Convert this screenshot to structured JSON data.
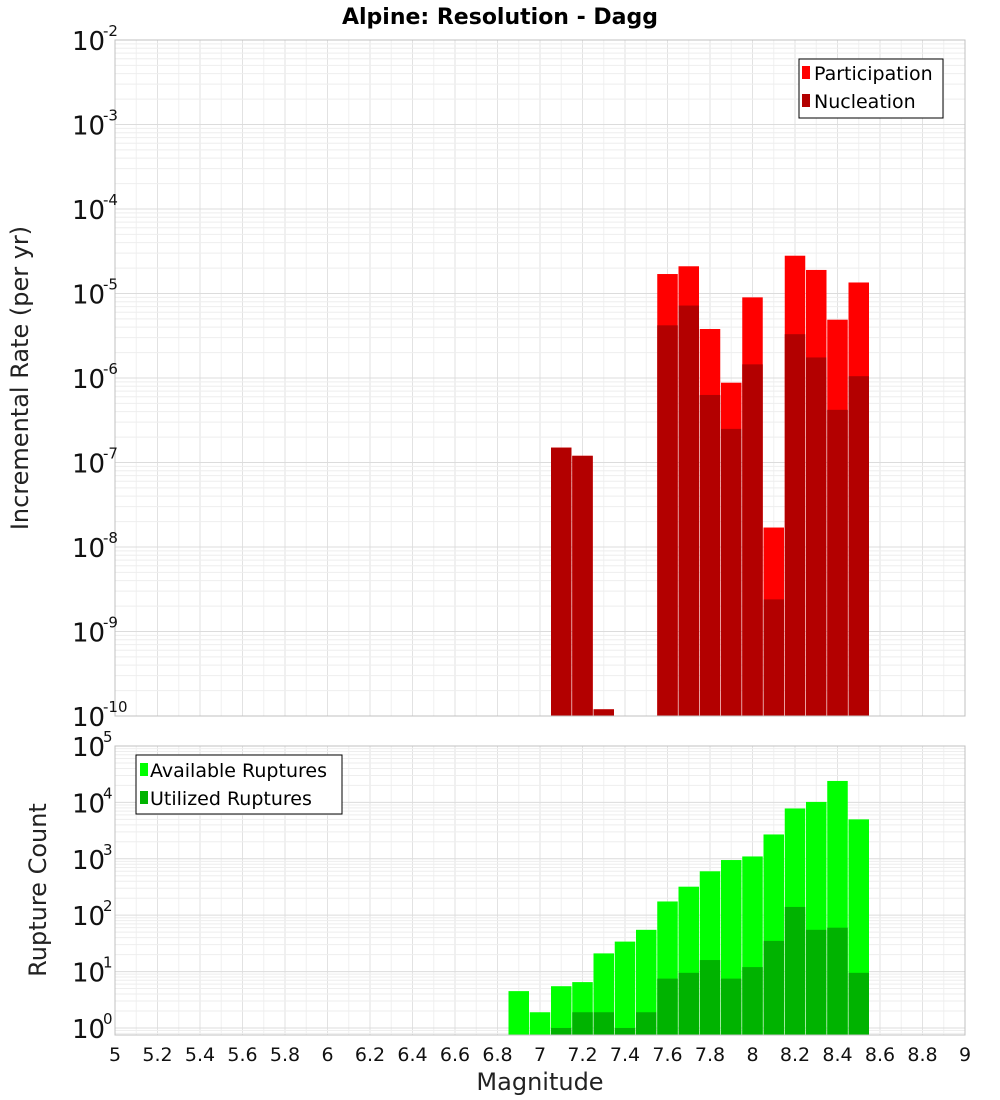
{
  "chart_data": [
    {
      "type": "bar",
      "title": "Alpine: Resolution - Dagg",
      "xlabel": "",
      "ylabel": "Incremental Rate (per yr)",
      "yscale": "log",
      "ylim": [
        1e-10,
        0.01
      ],
      "xlim": [
        5,
        9
      ],
      "ytick_bases": [
        "10",
        "10",
        "10",
        "10",
        "10",
        "10",
        "10",
        "10",
        "10"
      ],
      "ytick_exps": [
        "-10",
        "-9",
        "-8",
        "-7",
        "-6",
        "-5",
        "-4",
        "-3",
        "-2"
      ],
      "legend": "top-right",
      "grid": true,
      "x": [
        7.1,
        7.2,
        7.3,
        7.6,
        7.7,
        7.8,
        7.9,
        8.0,
        8.1,
        8.2,
        8.3,
        8.4,
        8.5
      ],
      "series": [
        {
          "name": "Participation",
          "color": "#ff0000",
          "values": [
            1.5e-07,
            1.2e-07,
            1.2e-10,
            1.7e-05,
            2.1e-05,
            3.8e-06,
            8.8e-07,
            9e-06,
            1.7e-08,
            2.8e-05,
            1.9e-05,
            4.9e-06,
            1.35e-05
          ]
        },
        {
          "name": "Nucleation",
          "color": "#b30000",
          "values": [
            1.5e-07,
            1.2e-07,
            1.2e-10,
            4.2e-06,
            7.2e-06,
            6.3e-07,
            2.5e-07,
            1.45e-06,
            2.4e-09,
            3.3e-06,
            1.75e-06,
            4.2e-07,
            1.05e-06
          ]
        }
      ]
    },
    {
      "type": "bar",
      "title": "",
      "xlabel": "Magnitude",
      "ylabel": "Rupture Count",
      "yscale": "log",
      "ylim": [
        0.75,
        100000.0
      ],
      "xlim": [
        5,
        9
      ],
      "xticks": [
        "5",
        "5.2",
        "5.4",
        "5.6",
        "5.8",
        "6",
        "6.2",
        "6.4",
        "6.6",
        "6.8",
        "7",
        "7.2",
        "7.4",
        "7.6",
        "7.8",
        "8",
        "8.2",
        "8.4",
        "8.6",
        "8.8",
        "9"
      ],
      "ytick_bases": [
        "10",
        "10",
        "10",
        "10",
        "10",
        "10"
      ],
      "ytick_exps": [
        "0",
        "1",
        "2",
        "3",
        "4",
        "5"
      ],
      "legend": "top-left",
      "grid": true,
      "x": [
        6.9,
        7.0,
        7.1,
        7.2,
        7.3,
        7.4,
        7.5,
        7.6,
        7.7,
        7.8,
        7.9,
        8.0,
        8.1,
        8.2,
        8.3,
        8.4,
        8.5
      ],
      "series": [
        {
          "name": "Available Ruptures",
          "color": "#00ff00",
          "values": [
            4.5,
            1.9,
            5.5,
            6.5,
            21,
            34,
            55,
            175,
            320,
            600,
            950,
            1100,
            2700,
            7800,
            10200,
            24000,
            5000
          ]
        },
        {
          "name": "Utilized Ruptures",
          "color": "#00b300",
          "values": [
            0,
            0,
            1,
            1.9,
            1.9,
            1,
            1.9,
            7.5,
            9.5,
            16,
            7.5,
            12,
            35,
            140,
            55,
            60,
            9.5
          ]
        }
      ]
    }
  ]
}
